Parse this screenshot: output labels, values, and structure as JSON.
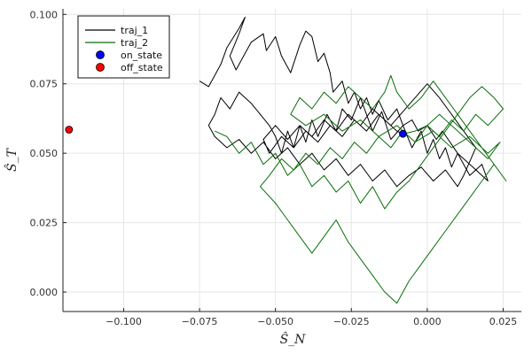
{
  "chart_data": {
    "type": "line",
    "title": "",
    "xlabel": "Ŝ_N",
    "ylabel": "Ŝ_T",
    "xlim": [
      -0.12,
      0.031
    ],
    "ylim": [
      -0.007,
      0.102
    ],
    "xticks": [
      -0.1,
      -0.075,
      -0.05,
      -0.025,
      0.0,
      0.025
    ],
    "xtick_labels": [
      "−0.100",
      "−0.075",
      "−0.050",
      "−0.025",
      "0.000",
      "0.025"
    ],
    "yticks": [
      0.0,
      0.025,
      0.05,
      0.075,
      0.1
    ],
    "ytick_labels": [
      "0.000",
      "0.025",
      "0.050",
      "0.075",
      "0.100"
    ],
    "grid": true,
    "legend_position": "top-left",
    "series": [
      {
        "name": "traj_1",
        "kind": "line",
        "color": "#000000",
        "x": [
          -0.075,
          -0.072,
          -0.07,
          -0.068,
          -0.066,
          -0.062,
          -0.06,
          -0.062,
          -0.065,
          -0.063,
          -0.06,
          -0.058,
          -0.054,
          -0.053,
          -0.05,
          -0.048,
          -0.045,
          -0.042,
          -0.04,
          -0.038,
          -0.036,
          -0.034,
          -0.032,
          -0.031,
          -0.028,
          -0.026,
          -0.024,
          -0.022,
          -0.02,
          -0.018,
          -0.016,
          -0.013,
          -0.01,
          -0.008,
          -0.005,
          -0.003,
          0.0,
          0.003,
          0.005,
          0.01,
          0.015,
          0.02,
          0.018,
          0.014,
          0.01,
          0.008,
          0.006,
          0.004,
          0.002,
          0.0,
          -0.002,
          -0.005,
          -0.008,
          -0.012,
          -0.015,
          -0.018,
          -0.022,
          -0.025,
          -0.028,
          -0.03,
          -0.033,
          -0.036,
          -0.038,
          -0.04,
          -0.042,
          -0.044,
          -0.046,
          -0.048,
          -0.05,
          -0.052,
          -0.055,
          -0.058,
          -0.062,
          -0.065,
          -0.068,
          -0.07,
          -0.072,
          -0.07,
          -0.066,
          -0.062,
          -0.058,
          -0.054,
          -0.05,
          -0.046,
          -0.042,
          -0.038,
          -0.034,
          -0.03,
          -0.026,
          -0.022,
          -0.018,
          -0.014,
          -0.01,
          -0.006,
          -0.002,
          0.002,
          0.006,
          0.01,
          0.012,
          0.014,
          0.016,
          0.012,
          0.008,
          0.004,
          0.0,
          -0.004,
          -0.008,
          -0.012,
          -0.016,
          -0.02,
          -0.024,
          -0.028,
          -0.032,
          -0.036,
          -0.04,
          -0.044,
          -0.048,
          -0.052,
          -0.054,
          -0.05,
          -0.046,
          -0.042,
          -0.038,
          -0.034,
          -0.03,
          -0.026,
          -0.022,
          -0.018,
          -0.014,
          -0.01,
          -0.008
        ],
        "y": [
          0.076,
          0.074,
          0.078,
          0.082,
          0.088,
          0.095,
          0.099,
          0.093,
          0.085,
          0.08,
          0.086,
          0.09,
          0.093,
          0.087,
          0.092,
          0.085,
          0.079,
          0.089,
          0.094,
          0.092,
          0.083,
          0.086,
          0.079,
          0.072,
          0.076,
          0.068,
          0.072,
          0.066,
          0.07,
          0.064,
          0.069,
          0.062,
          0.066,
          0.06,
          0.062,
          0.058,
          0.06,
          0.055,
          0.058,
          0.05,
          0.045,
          0.04,
          0.046,
          0.042,
          0.05,
          0.045,
          0.052,
          0.048,
          0.055,
          0.05,
          0.058,
          0.052,
          0.06,
          0.055,
          0.065,
          0.058,
          0.07,
          0.062,
          0.066,
          0.058,
          0.064,
          0.056,
          0.062,
          0.054,
          0.06,
          0.052,
          0.058,
          0.05,
          0.056,
          0.06,
          0.064,
          0.068,
          0.072,
          0.066,
          0.07,
          0.064,
          0.06,
          0.056,
          0.052,
          0.055,
          0.05,
          0.054,
          0.048,
          0.052,
          0.046,
          0.05,
          0.044,
          0.048,
          0.042,
          0.046,
          0.04,
          0.044,
          0.038,
          0.042,
          0.045,
          0.04,
          0.044,
          0.038,
          0.042,
          0.047,
          0.052,
          0.058,
          0.064,
          0.07,
          0.075,
          0.07,
          0.065,
          0.06,
          0.064,
          0.058,
          0.062,
          0.056,
          0.06,
          0.054,
          0.058,
          0.052,
          0.056,
          0.05,
          0.055,
          0.06,
          0.055,
          0.06,
          0.056,
          0.062,
          0.058,
          0.064,
          0.06,
          0.066,
          0.062,
          0.058,
          0.057
        ]
      },
      {
        "name": "traj_2",
        "kind": "line",
        "color": "#0b6e0b",
        "x": [
          -0.07,
          -0.066,
          -0.062,
          -0.058,
          -0.054,
          -0.05,
          -0.046,
          -0.042,
          -0.038,
          -0.034,
          -0.03,
          -0.026,
          -0.022,
          -0.018,
          -0.014,
          -0.01,
          -0.006,
          -0.002,
          0.002,
          0.006,
          0.01,
          0.014,
          0.018,
          0.022,
          0.025,
          0.02,
          0.016,
          0.012,
          0.008,
          0.004,
          0.0,
          -0.004,
          -0.008,
          -0.012,
          -0.016,
          -0.02,
          -0.024,
          -0.028,
          -0.032,
          -0.036,
          -0.04,
          -0.044,
          -0.048,
          -0.052,
          -0.055,
          -0.05,
          -0.046,
          -0.042,
          -0.038,
          -0.034,
          -0.03,
          -0.026,
          -0.022,
          -0.018,
          -0.014,
          -0.01,
          -0.006,
          -0.002,
          0.002,
          0.006,
          0.01,
          0.014,
          0.018,
          0.022,
          0.026,
          0.022,
          0.018,
          0.014,
          0.01,
          0.006,
          0.002,
          -0.002,
          -0.006,
          -0.01,
          -0.012,
          -0.014,
          -0.018,
          -0.022,
          -0.026,
          -0.03,
          -0.034,
          -0.038,
          -0.042,
          -0.045,
          -0.04,
          -0.034,
          -0.028,
          -0.022,
          -0.016,
          -0.01,
          -0.004,
          0.002,
          0.008,
          0.014,
          0.02,
          0.024,
          0.02,
          0.016,
          0.012,
          0.008,
          0.004,
          0.0,
          -0.004,
          -0.008
        ],
        "y": [
          0.058,
          0.056,
          0.05,
          0.054,
          0.046,
          0.05,
          0.042,
          0.046,
          0.038,
          0.042,
          0.036,
          0.04,
          0.032,
          0.038,
          0.03,
          0.036,
          0.04,
          0.046,
          0.052,
          0.058,
          0.064,
          0.07,
          0.074,
          0.07,
          0.066,
          0.06,
          0.064,
          0.058,
          0.062,
          0.056,
          0.06,
          0.054,
          0.058,
          0.052,
          0.056,
          0.05,
          0.054,
          0.048,
          0.052,
          0.046,
          0.05,
          0.044,
          0.048,
          0.042,
          0.038,
          0.032,
          0.026,
          0.02,
          0.014,
          0.02,
          0.026,
          0.018,
          0.012,
          0.006,
          0.0,
          -0.004,
          0.004,
          0.01,
          0.016,
          0.022,
          0.028,
          0.034,
          0.04,
          0.046,
          0.04,
          0.046,
          0.052,
          0.058,
          0.064,
          0.07,
          0.076,
          0.07,
          0.066,
          0.072,
          0.078,
          0.072,
          0.066,
          0.07,
          0.074,
          0.068,
          0.072,
          0.066,
          0.07,
          0.064,
          0.06,
          0.064,
          0.058,
          0.062,
          0.056,
          0.06,
          0.054,
          0.058,
          0.052,
          0.056,
          0.05,
          0.054,
          0.048,
          0.052,
          0.056,
          0.06,
          0.064,
          0.06,
          0.058,
          0.057
        ]
      },
      {
        "name": "on_state",
        "kind": "scatter",
        "color": "#0000ff",
        "x": [
          -0.008
        ],
        "y": [
          0.057
        ]
      },
      {
        "name": "off_state",
        "kind": "scatter",
        "color": "#ff0000",
        "x": [
          -0.118
        ],
        "y": [
          0.0585
        ]
      }
    ]
  }
}
